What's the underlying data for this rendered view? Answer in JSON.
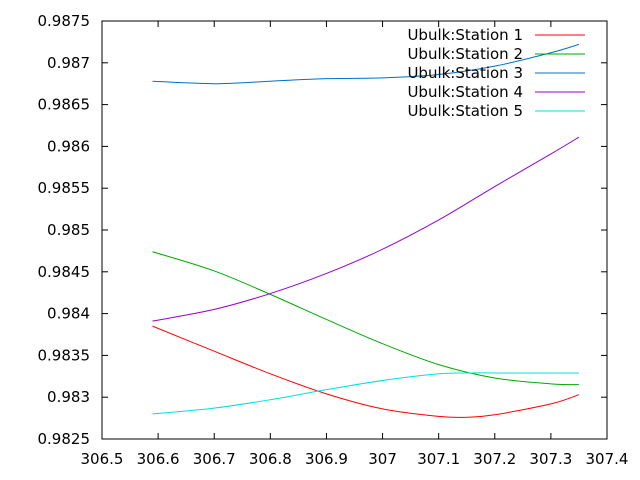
{
  "chart_data": {
    "type": "line",
    "title": "",
    "xlabel": "",
    "ylabel": "",
    "xlim": [
      306.5,
      307.4
    ],
    "ylim": [
      0.9825,
      0.9875
    ],
    "x_ticks": [
      "306.5",
      "306.6",
      "306.7",
      "306.8",
      "306.9",
      "307",
      "307.1",
      "307.2",
      "307.3",
      "307.4"
    ],
    "y_ticks": [
      "0.9825",
      "0.983",
      "0.9835",
      "0.984",
      "0.9845",
      "0.985",
      "0.9855",
      "0.986",
      "0.9865",
      "0.987",
      "0.9875"
    ],
    "grid": false,
    "legend_position": "top-right",
    "series": [
      {
        "name": "Ubulk:Station 1",
        "color": "#ff0000",
        "x": [
          306.59,
          306.7,
          306.8,
          306.9,
          307.0,
          307.1,
          307.15,
          307.2,
          307.3,
          307.35
        ],
        "y": [
          0.98385,
          0.98355,
          0.98328,
          0.98304,
          0.98286,
          0.98277,
          0.98276,
          0.98279,
          0.98292,
          0.98303
        ]
      },
      {
        "name": "Ubulk:Station 2",
        "color": "#00aa00",
        "x": [
          306.59,
          306.7,
          306.8,
          306.9,
          307.0,
          307.1,
          307.2,
          307.3,
          307.35
        ],
        "y": [
          0.98474,
          0.98451,
          0.98423,
          0.98393,
          0.98364,
          0.98339,
          0.98323,
          0.98316,
          0.98315
        ]
      },
      {
        "name": "Ubulk:Station 3",
        "color": "#0070cc",
        "x": [
          306.59,
          306.7,
          306.8,
          306.9,
          307.0,
          307.1,
          307.2,
          307.3,
          307.35
        ],
        "y": [
          0.98678,
          0.98675,
          0.98678,
          0.98681,
          0.98682,
          0.98686,
          0.98696,
          0.98712,
          0.98722
        ]
      },
      {
        "name": "Ubulk:Station 4",
        "color": "#9400d3",
        "x": [
          306.59,
          306.7,
          306.8,
          306.9,
          307.0,
          307.1,
          307.2,
          307.3,
          307.35
        ],
        "y": [
          0.98391,
          0.98405,
          0.98424,
          0.98448,
          0.98477,
          0.98512,
          0.98552,
          0.98591,
          0.98611
        ]
      },
      {
        "name": "Ubulk:Station 5",
        "color": "#00e0e0",
        "x": [
          306.59,
          306.7,
          306.8,
          306.9,
          307.0,
          307.1,
          307.15,
          307.2,
          307.3,
          307.35
        ],
        "y": [
          0.9828,
          0.98287,
          0.98297,
          0.98309,
          0.9832,
          0.98328,
          0.98329,
          0.98329,
          0.98329,
          0.98329
        ]
      }
    ]
  }
}
